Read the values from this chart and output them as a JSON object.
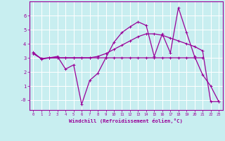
{
  "xlabel": "Windchill (Refroidissement éolien,°C)",
  "background_color": "#c8eef0",
  "line_color": "#990099",
  "grid_color": "#ffffff",
  "x_ticks": [
    0,
    1,
    2,
    3,
    4,
    5,
    6,
    7,
    8,
    9,
    10,
    11,
    12,
    13,
    14,
    15,
    16,
    17,
    18,
    19,
    20,
    21,
    22,
    23
  ],
  "y_ticks": [
    0,
    1,
    2,
    3,
    4,
    5,
    6
  ],
  "ylim": [
    -0.7,
    7.0
  ],
  "xlim": [
    -0.5,
    23.5
  ],
  "series1_x": [
    0,
    1,
    2,
    3,
    4,
    5,
    6,
    7,
    8,
    9,
    10,
    11,
    12,
    13,
    14,
    15,
    16,
    17,
    18,
    19,
    20,
    21,
    22,
    23
  ],
  "series1_y": [
    3.4,
    2.9,
    3.0,
    3.1,
    2.2,
    2.5,
    -0.3,
    1.4,
    1.9,
    3.0,
    4.1,
    4.8,
    5.2,
    5.55,
    5.3,
    3.1,
    4.7,
    3.35,
    6.55,
    4.8,
    3.1,
    1.8,
    1.0,
    -0.1
  ],
  "series2_x": [
    0,
    1,
    2,
    3,
    4,
    5,
    6,
    7,
    8,
    9,
    10,
    11,
    12,
    13,
    14,
    15,
    16,
    17,
    18,
    19,
    20,
    21
  ],
  "series2_y": [
    3.3,
    2.95,
    3.0,
    3.0,
    3.0,
    3.0,
    3.0,
    3.0,
    3.0,
    3.0,
    3.0,
    3.0,
    3.0,
    3.0,
    3.0,
    3.0,
    3.0,
    3.0,
    3.0,
    3.0,
    3.0,
    3.0
  ],
  "series3_x": [
    0,
    1,
    2,
    3,
    4,
    5,
    6,
    7,
    8,
    9,
    10,
    11,
    12,
    13,
    14,
    15,
    16,
    17,
    18,
    19,
    20,
    21,
    22,
    23
  ],
  "series3_y": [
    3.3,
    2.95,
    3.0,
    3.0,
    3.0,
    3.0,
    3.0,
    3.0,
    3.1,
    3.3,
    3.6,
    3.9,
    4.2,
    4.5,
    4.7,
    4.7,
    4.6,
    4.4,
    4.2,
    4.0,
    3.8,
    3.5,
    -0.1,
    -0.1
  ]
}
